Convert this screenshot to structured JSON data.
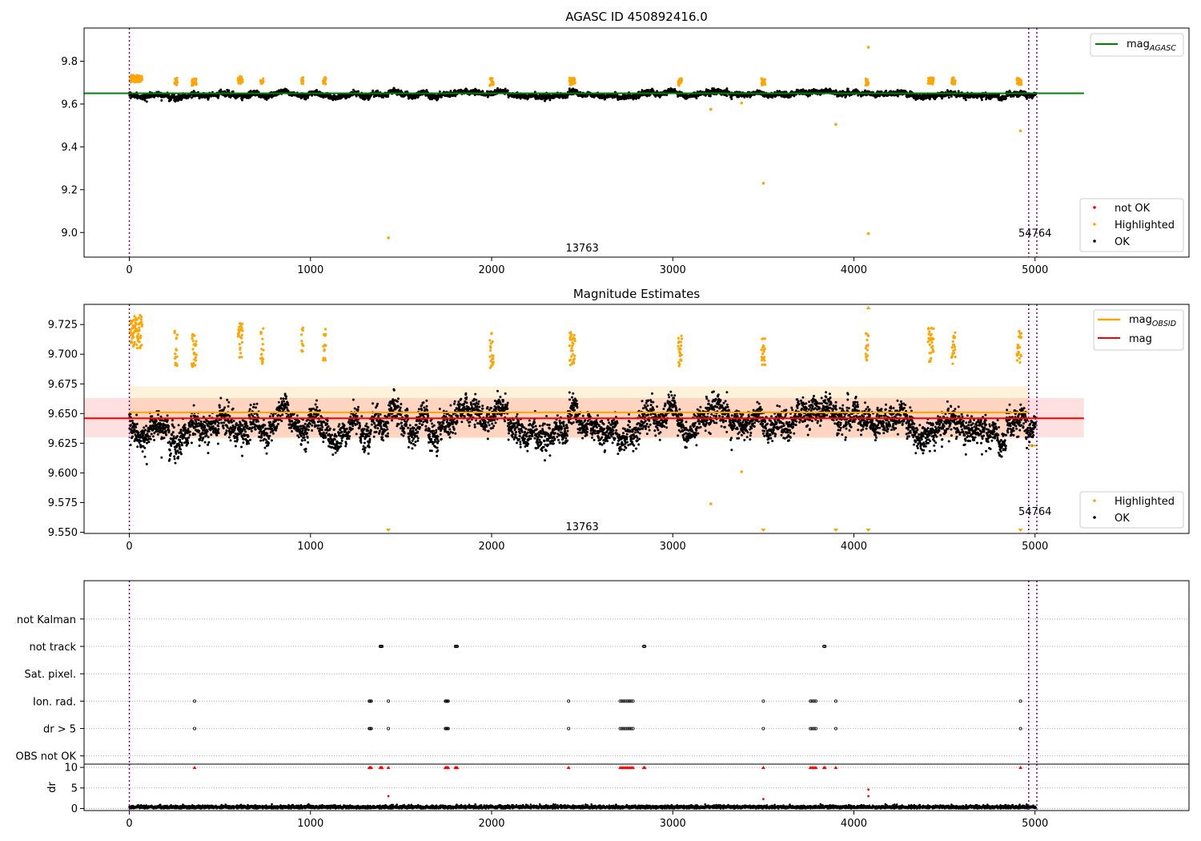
{
  "colors": {
    "ok": "#000000",
    "highlighted": "#ffa500",
    "not_ok": "#ff0000",
    "mag_agasc": "#008000",
    "mag_obsid": "#ffa500",
    "mag": "#ff0000",
    "obs_boundary": "#800080",
    "grid": "#b0b0b0"
  },
  "chart_data": [
    {
      "type": "scatter",
      "title": "AGASC ID 450892416.0",
      "xlabel": "",
      "ylabel": "",
      "xlim": [
        -250,
        5850
      ],
      "ylim": [
        8.885,
        9.955
      ],
      "x_ticks": [
        0,
        1000,
        2000,
        3000,
        4000,
        5000
      ],
      "y_ticks": [
        9.0,
        9.2,
        9.4,
        9.6,
        9.8
      ],
      "y_tick_decimals": 1,
      "x_tick_labels": [
        "0",
        "1000",
        "2000",
        "3000",
        "4000",
        "5000"
      ],
      "y_tick_labels": [
        "9.0",
        "9.2",
        "9.4",
        "9.6",
        "9.8"
      ],
      "obs_boundaries": [
        0,
        4965,
        5010
      ],
      "obs_labels": [
        {
          "x": 2500,
          "y": 8.93,
          "text": "13763"
        },
        {
          "x": 5000,
          "y": 9.0,
          "text": "54764"
        }
      ],
      "hlines": [
        {
          "name": "mag_AGASC",
          "y": 9.65,
          "xmin": -250,
          "xmax": 5270,
          "color": "#008000"
        }
      ],
      "legend_top": {
        "position": "upper right",
        "entries": [
          {
            "label": "mag",
            "sub": "AGASC",
            "color": "#008000"
          }
        ]
      },
      "legend_bottom": {
        "position": "lower right",
        "entries": [
          {
            "label": "not OK",
            "color": "#ff0000"
          },
          {
            "label": "Highlighted",
            "color": "#ffa500"
          },
          {
            "label": "OK",
            "color": "#000000"
          }
        ]
      },
      "series": [
        {
          "name": "OK",
          "color": "#000000",
          "description": "about 5000 measurements around 9.64 (range ~9.61-9.69)"
        },
        {
          "name": "Highlighted",
          "color": "#ffa500",
          "description": "clusters near 9.70-9.75 plus outliers",
          "outliers": [
            [
              1430,
              8.975
            ],
            [
              3500,
              9.23
            ],
            [
              3900,
              9.505
            ],
            [
              4080,
              8.995
            ],
            [
              4080,
              9.865
            ],
            [
              4920,
              9.475
            ],
            [
              3210,
              9.575
            ],
            [
              3380,
              9.605
            ]
          ]
        }
      ]
    },
    {
      "type": "scatter",
      "title": "Magnitude Estimates",
      "xlabel": "",
      "ylabel": "",
      "xlim": [
        -250,
        5850
      ],
      "ylim": [
        9.549,
        9.742
      ],
      "x_ticks": [
        0,
        1000,
        2000,
        3000,
        4000,
        5000
      ],
      "y_ticks": [
        9.55,
        9.575,
        9.6,
        9.625,
        9.65,
        9.675,
        9.7,
        9.725
      ],
      "y_tick_decimals": 3,
      "x_tick_labels": [
        "0",
        "1000",
        "2000",
        "3000",
        "4000",
        "5000"
      ],
      "y_tick_labels": [
        "9.550",
        "9.575",
        "9.600",
        "9.625",
        "9.650",
        "9.675",
        "9.700",
        "9.725"
      ],
      "obs_boundaries": [
        0,
        4965,
        5010
      ],
      "obs_labels": [
        {
          "x": 2500,
          "y": 9.555,
          "text": "13763"
        },
        {
          "x": 5000,
          "y": 9.568,
          "text": "54764"
        }
      ],
      "bands": [
        {
          "name": "mag_OBSID band",
          "y0": 9.629,
          "y1": 9.673,
          "xmin": 0,
          "xmax": 4965,
          "color": "#ffa500",
          "opacity": 0.14
        },
        {
          "name": "mag band",
          "y0": 9.63,
          "y1": 9.663,
          "xmin": -250,
          "xmax": 5270,
          "color": "#ff0000",
          "opacity": 0.12
        }
      ],
      "hlines": [
        {
          "name": "mag_OBSID",
          "y": 9.651,
          "xmin": 0,
          "xmax": 4965,
          "color": "#ffa500"
        },
        {
          "name": "mag_OBSID (54764)",
          "y": 9.623,
          "xmin": 4965,
          "xmax": 5010,
          "color": "#ffa500"
        },
        {
          "name": "mag",
          "y": 9.646,
          "xmin": -250,
          "xmax": 5270,
          "color": "#ff0000"
        }
      ],
      "legend_top": {
        "position": "upper right",
        "entries": [
          {
            "label": "mag",
            "sub": "OBSID",
            "color": "#ffa500"
          },
          {
            "label": "mag",
            "sub": "",
            "color": "#ff0000"
          }
        ]
      },
      "legend_bottom": {
        "position": "lower right",
        "entries": [
          {
            "label": "Highlighted",
            "color": "#ffa500"
          },
          {
            "label": "OK",
            "color": "#000000"
          }
        ]
      },
      "series": [
        {
          "name": "OK",
          "color": "#000000",
          "description": "about 5000 measurements between 9.60 and 9.695"
        },
        {
          "name": "Highlighted",
          "color": "#ffa500",
          "description": "clusters between 9.69 and 9.74",
          "outliers": [
            [
              3210,
              9.574
            ],
            [
              3380,
              9.601
            ]
          ],
          "clipped_low_markers": [
            1430,
            3500,
            3900,
            4080,
            4920
          ],
          "clipped_high_markers": [
            4080
          ]
        }
      ]
    },
    {
      "type": "scatter",
      "title": "",
      "xlabel": "",
      "ylabel": "",
      "xlim": [
        -250,
        5850
      ],
      "ylim": [
        -0.3,
        6.4
      ],
      "flag_rows": [
        "not Kalman",
        "not track",
        "Sat. pixel.",
        "Ion. rad.",
        "dr > 5",
        "OBS not OK"
      ],
      "obs_boundaries": [
        0,
        4965,
        5010
      ],
      "flags": {
        "not Kalman": [],
        "not track": [
          1385,
          1390,
          1395,
          1800,
          1805,
          1810,
          2840,
          2845,
          3835,
          3840
        ],
        "Sat. pixel.": [],
        "Ion. rad.": [
          360,
          1325,
          1330,
          1335,
          1430,
          1745,
          1750,
          1755,
          1760,
          2425,
          2710,
          2720,
          2730,
          2740,
          2750,
          2760,
          2770,
          2780,
          3500,
          3760,
          3770,
          3780,
          3790,
          3900,
          4920
        ],
        "dr > 5": [
          360,
          1325,
          1330,
          1335,
          1430,
          1745,
          1750,
          1755,
          1760,
          2425,
          2710,
          2720,
          2730,
          2740,
          2750,
          2760,
          2770,
          2780,
          3500,
          3760,
          3770,
          3780,
          3790,
          3900,
          4920
        ],
        "OBS not OK": []
      }
    },
    {
      "type": "scatter",
      "title": "",
      "xlabel": "",
      "ylabel": "dr",
      "xlim": [
        -250,
        5850
      ],
      "ylim": [
        -0.5,
        10.8
      ],
      "x_ticks": [
        0,
        1000,
        2000,
        3000,
        4000,
        5000
      ],
      "y_ticks": [
        0,
        5,
        10
      ],
      "y_tick_decimals": 0,
      "x_tick_labels": [
        "0",
        "1000",
        "2000",
        "3000",
        "4000",
        "5000"
      ],
      "y_tick_labels": [
        "0",
        "5",
        "10"
      ],
      "obs_boundaries": [
        0,
        4965,
        5010
      ],
      "series": [
        {
          "name": "dr",
          "color": "#000000",
          "description": "about 5000 values mostly between 0 and 1"
        },
        {
          "name": "dr clipped",
          "color": "#ff0000",
          "description": "values above 10 drawn as markers at 10",
          "x": [
            360,
            1325,
            1330,
            1335,
            1385,
            1390,
            1395,
            1430,
            1745,
            1750,
            1755,
            1760,
            1800,
            1805,
            1810,
            2425,
            2710,
            2720,
            2730,
            2740,
            2750,
            2760,
            2770,
            2780,
            2840,
            2845,
            3500,
            3760,
            3770,
            3780,
            3790,
            3835,
            3840,
            3900,
            4920
          ]
        },
        {
          "name": "dr highlighted",
          "color": "#ff0000",
          "points": [
            [
              4080,
              4.6
            ],
            [
              4080,
              3.0
            ],
            [
              1430,
              3.0
            ],
            [
              3500,
              2.3
            ]
          ]
        }
      ]
    }
  ]
}
